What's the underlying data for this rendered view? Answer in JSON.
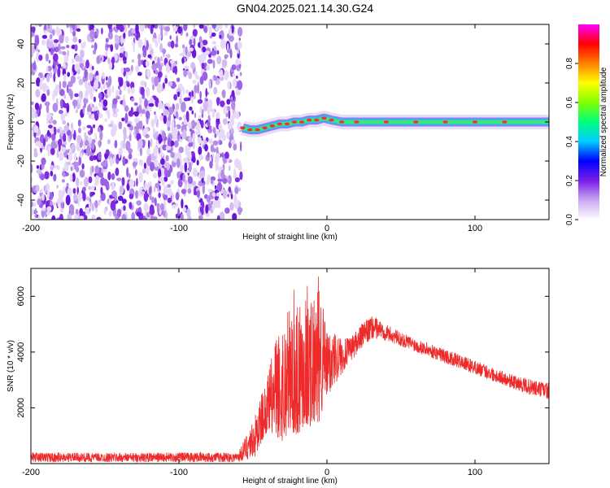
{
  "page": {
    "title": "GN04.2025.021.14.30.G24"
  },
  "chart_data": [
    {
      "type": "heatmap",
      "title": "GN04.2025.021.14.30.G24",
      "xlabel": "Height of straight line (km)",
      "ylabel": "Frequency (Hz)",
      "xlim": [
        -200,
        150
      ],
      "ylim": [
        -50,
        50
      ],
      "xticks": [
        -200,
        -100,
        0,
        100
      ],
      "yticks": [
        -40,
        -20,
        0,
        20,
        40
      ],
      "noise_region_x": [
        -200,
        -58
      ],
      "signal_trace": {
        "x": [
          -57,
          -52,
          -47,
          -42,
          -37,
          -32,
          -27,
          -22,
          -17,
          -12,
          -7,
          -2,
          3,
          10,
          20,
          40,
          60,
          80,
          100,
          120,
          150
        ],
        "y": [
          -3,
          -4,
          -4,
          -3,
          -2,
          -1,
          -1,
          0,
          0,
          1,
          1,
          2,
          1,
          0,
          0,
          0,
          0,
          0,
          0,
          0,
          0
        ]
      },
      "colorbar": {
        "label": "Normalized spectral amplitude",
        "range": [
          0,
          1
        ],
        "ticks": [
          0.0,
          0.2,
          0.4,
          0.6,
          0.8
        ],
        "colors": [
          "#ffffff",
          "#c8a8f0",
          "#7a1ee8",
          "#0000ff",
          "#00ccff",
          "#00ff80",
          "#80ff00",
          "#ffff00",
          "#ff8000",
          "#ff0000",
          "#ff00ff"
        ]
      }
    },
    {
      "type": "line",
      "xlabel": "Height of straight line (km)",
      "ylabel": "SNR (10 * v/v)",
      "xlim": [
        -200,
        150
      ],
      "ylim": [
        0,
        7000
      ],
      "xticks": [
        -200,
        -100,
        0,
        100
      ],
      "yticks": [
        2000,
        4000,
        6000
      ],
      "series": [
        {
          "color": "#ee2a2a",
          "envelope": {
            "x": [
              -200,
              -150,
              -100,
              -60,
              -48,
              -44,
              -40,
              -35,
              -30,
              -25,
              -20,
              -15,
              -10,
              -5,
              0,
              5,
              10,
              15,
              20,
              25,
              30,
              35,
              40,
              50,
              60,
              70,
              80,
              90,
              100,
              110,
              120,
              130,
              140,
              150
            ],
            "low": [
              50,
              50,
              50,
              50,
              200,
              800,
              1200,
              1000,
              800,
              1200,
              1000,
              1400,
              1300,
              1500,
              2200,
              2800,
              3200,
              3600,
              3900,
              4200,
              4400,
              4500,
              4400,
              4200,
              4000,
              3800,
              3600,
              3400,
              3200,
              3000,
              2800,
              2600,
              2400,
              2300
            ],
            "high": [
              400,
              380,
              400,
              400,
              1800,
              2600,
              3200,
              4600,
              5200,
              6000,
              6600,
              7000,
              6200,
              6800,
              4700,
              4800,
              4500,
              4500,
              4800,
              5100,
              5300,
              5200,
              5000,
              4700,
              4500,
              4300,
              4100,
              3900,
              3700,
              3500,
              3300,
              3100,
              3000,
              2900
            ]
          }
        }
      ]
    }
  ]
}
